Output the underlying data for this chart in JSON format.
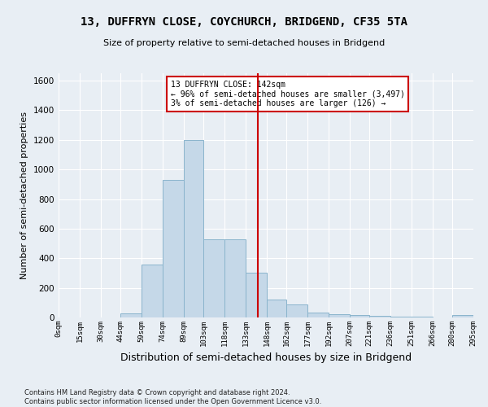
{
  "title": "13, DUFFRYN CLOSE, COYCHURCH, BRIDGEND, CF35 5TA",
  "subtitle": "Size of property relative to semi-detached houses in Bridgend",
  "xlabel": "Distribution of semi-detached houses by size in Bridgend",
  "ylabel": "Number of semi-detached properties",
  "bin_edges": [
    0,
    15,
    30,
    44,
    59,
    74,
    89,
    103,
    118,
    133,
    148,
    162,
    177,
    192,
    207,
    221,
    236,
    251,
    266,
    280,
    295
  ],
  "bar_heights": [
    0,
    0,
    0,
    25,
    360,
    930,
    1200,
    530,
    530,
    305,
    120,
    90,
    35,
    20,
    15,
    12,
    5,
    3,
    0,
    15
  ],
  "bar_color": "#c5d8e8",
  "bar_edgecolor": "#8ab4cc",
  "vline_x": 142,
  "vline_color": "#cc0000",
  "annotation_line1": "13 DUFFRYN CLOSE: 142sqm",
  "annotation_line2": "← 96% of semi-detached houses are smaller (3,497)",
  "annotation_line3": "3% of semi-detached houses are larger (126) →",
  "annotation_box_color": "#cc0000",
  "annotation_bg_color": "#ffffff",
  "ylim": [
    0,
    1650
  ],
  "yticks": [
    0,
    200,
    400,
    600,
    800,
    1000,
    1200,
    1400,
    1600
  ],
  "tick_labels": [
    "0sqm",
    "15sqm",
    "30sqm",
    "44sqm",
    "59sqm",
    "74sqm",
    "89sqm",
    "103sqm",
    "118sqm",
    "133sqm",
    "148sqm",
    "162sqm",
    "177sqm",
    "192sqm",
    "207sqm",
    "221sqm",
    "236sqm",
    "251sqm",
    "266sqm",
    "280sqm",
    "295sqm"
  ],
  "footer_text": "Contains HM Land Registry data © Crown copyright and database right 2024.\nContains public sector information licensed under the Open Government Licence v3.0.",
  "bg_color": "#e8eef4",
  "grid_color": "#ffffff",
  "title_fontsize": 10,
  "subtitle_fontsize": 8,
  "xlabel_fontsize": 9,
  "ylabel_fontsize": 8
}
